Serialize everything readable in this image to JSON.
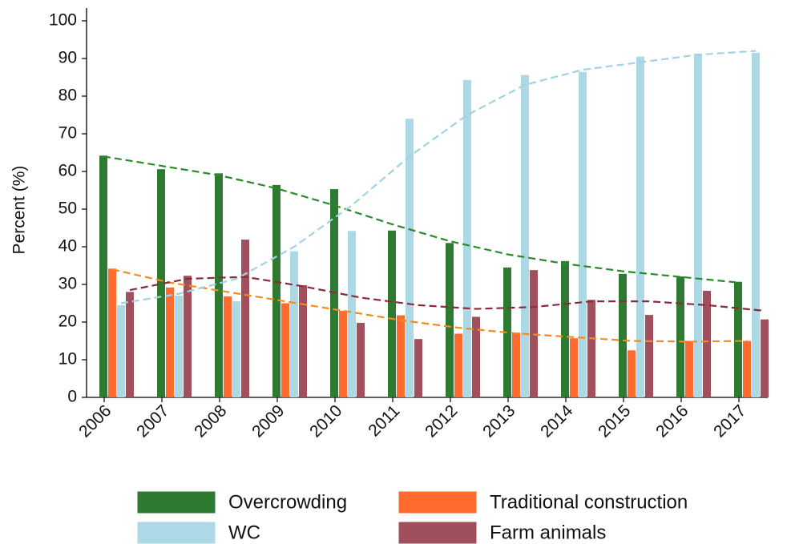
{
  "chart_data": {
    "type": "bar",
    "y_label": "Percent (%)",
    "categories": [
      "2006",
      "2007",
      "2008",
      "2009",
      "2010",
      "2011",
      "2012",
      "2013",
      "2014",
      "2015",
      "2016",
      "2017"
    ],
    "ylim": [
      0,
      100
    ],
    "yticks": [
      0,
      10,
      20,
      30,
      40,
      50,
      60,
      70,
      80,
      90,
      100
    ],
    "grid": false,
    "series": [
      {
        "name": "Overcrowding",
        "color": "#2e7a30",
        "trend_color": "#2a8a2a",
        "values": [
          64.2,
          60.6,
          59.5,
          56.4,
          55.3,
          44.3,
          41,
          34.5,
          36.2,
          32.8,
          32.1,
          30.7
        ],
        "trend": [
          64,
          61.5,
          59,
          55.5,
          51,
          46,
          41.5,
          38,
          35.5,
          33.5,
          32,
          30.5
        ]
      },
      {
        "name": "Traditional construction",
        "color": "#ff6a2e",
        "trend_color": "#f58a1f",
        "values": [
          34.2,
          29.2,
          26.8,
          25,
          23,
          21.8,
          16.9,
          17.2,
          15.7,
          12.5,
          15,
          15
        ],
        "trend": [
          34,
          30.5,
          28,
          25.5,
          23,
          20.5,
          18.5,
          17,
          16,
          15,
          14.8,
          15
        ]
      },
      {
        "name": "WC",
        "color": "#add8e6",
        "trend_color": "#9fd3e3",
        "values": [
          24.5,
          27,
          25.5,
          38.8,
          44.2,
          74,
          84.3,
          85.6,
          86.4,
          90.5,
          91.3,
          91.5
        ],
        "trend": [
          25,
          27.5,
          31.5,
          40,
          51,
          64,
          75,
          83,
          87,
          89,
          91,
          92
        ]
      },
      {
        "name": "Farm animals",
        "color": "#a0505c",
        "trend_color": "#8b2a3a",
        "values": [
          28,
          32.3,
          41.9,
          29.8,
          19.8,
          15.5,
          21.4,
          33.8,
          25.9,
          21.9,
          28.3,
          20.7
        ],
        "trend": [
          28.5,
          31.5,
          32,
          29.5,
          26.5,
          24.5,
          23.5,
          24,
          25.5,
          25.5,
          24.5,
          23
        ]
      }
    ]
  }
}
